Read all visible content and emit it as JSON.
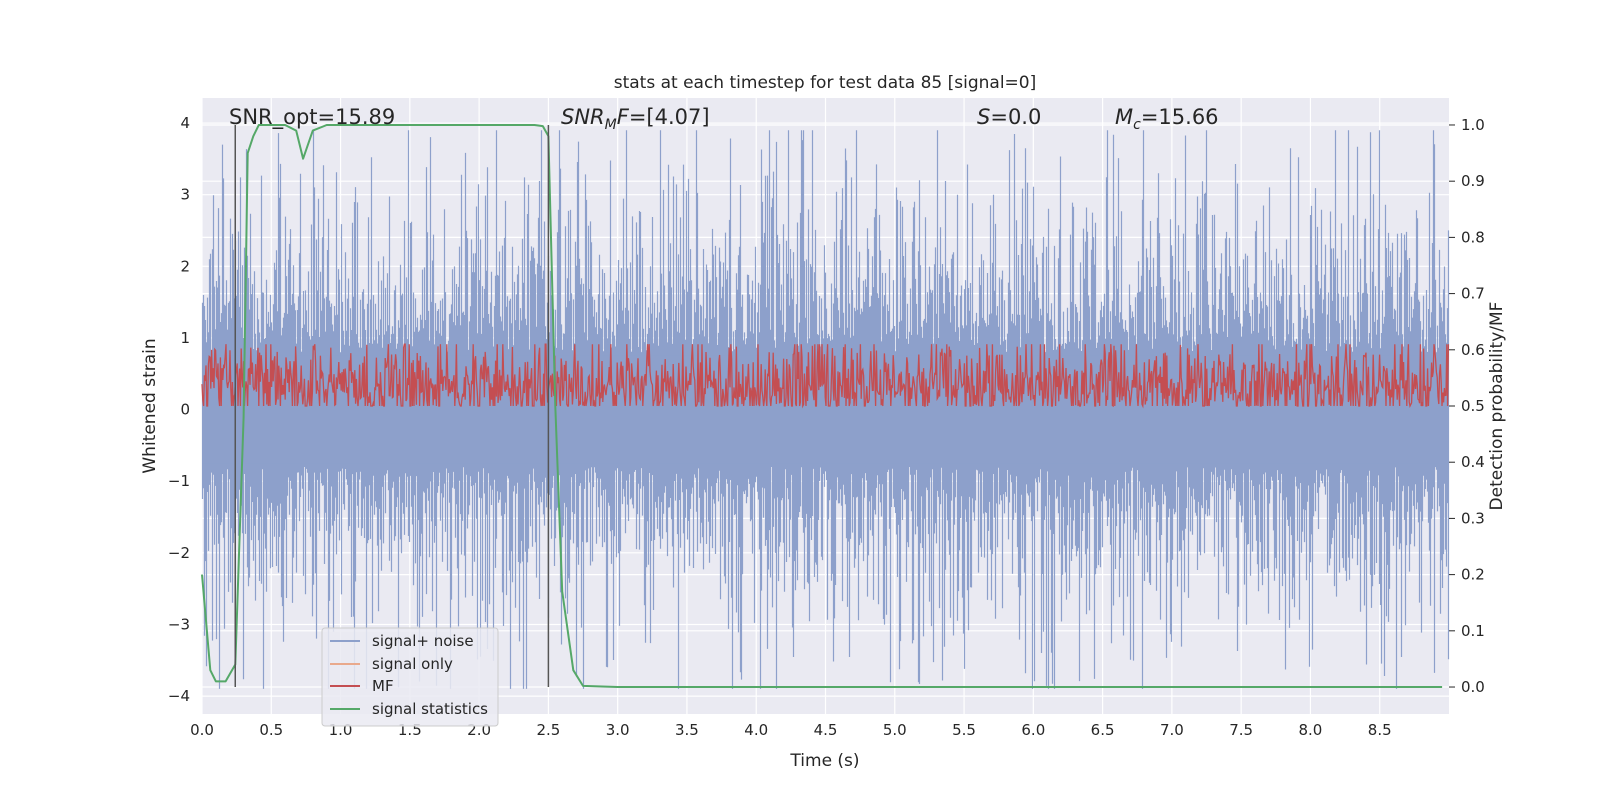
{
  "chart_data": {
    "type": "line",
    "title": "stats at each timestep for test data 85 [signal=0]",
    "xlabel": "Time (s)",
    "ylabel": "Whitened strain",
    "y2label": "Detection probability/MF",
    "xlim": [
      0.0,
      9.0
    ],
    "ylim": [
      -4.25,
      4.35
    ],
    "y2lim": [
      -0.048,
      1.048
    ],
    "xticks": [
      "0.0",
      "0.5",
      "1.0",
      "1.5",
      "2.0",
      "2.5",
      "3.0",
      "3.5",
      "4.0",
      "4.5",
      "5.0",
      "5.5",
      "6.0",
      "6.5",
      "7.0",
      "7.5",
      "8.0",
      "8.5"
    ],
    "yticks": [
      "4",
      "3",
      "2",
      "1",
      "0",
      "−1",
      "−2",
      "−3",
      "−4"
    ],
    "y2ticks": [
      "1.0",
      "0.9",
      "0.8",
      "0.7",
      "0.6",
      "0.5",
      "0.4",
      "0.3",
      "0.2",
      "0.1",
      "0.0"
    ],
    "grid": true,
    "legend_position": "lower-left",
    "annotations": {
      "snr_opt": "SNR_opt=15.89",
      "snr_mf": "=[4.07]",
      "s": "=0.0",
      "mc": "=15.66"
    },
    "vlines_x": [
      0.24,
      2.5
    ],
    "series": [
      {
        "name": "signal+ noise",
        "color": "#8da0cb",
        "description_values": "noise band roughly between -2.5 and 2.5 with spikes to about +/-3.9"
      },
      {
        "name": "signal only",
        "color": "#e9a98c",
        "values_note": "zero signal"
      },
      {
        "name": "MF",
        "color": "#c44e52",
        "range": [
          0.0,
          1.0
        ]
      },
      {
        "name": "signal statistics",
        "color": "#55a868",
        "axis": "right",
        "x": [
          0.0,
          0.06,
          0.1,
          0.17,
          0.24,
          0.3,
          0.33,
          0.37,
          0.41,
          0.5,
          0.6,
          0.68,
          0.73,
          0.8,
          0.9,
          1.0,
          1.5,
          2.0,
          2.3,
          2.4,
          2.46,
          2.5,
          2.55,
          2.6,
          2.68,
          2.75,
          3.0,
          4.0,
          5.0,
          6.0,
          7.0,
          8.0,
          8.95
        ],
        "y": [
          0.2,
          0.03,
          0.01,
          0.01,
          0.04,
          0.48,
          0.95,
          0.98,
          1.0,
          1.0,
          1.0,
          0.99,
          0.94,
          0.99,
          1.0,
          1.0,
          1.0,
          1.0,
          1.0,
          1.0,
          0.998,
          0.98,
          0.5,
          0.17,
          0.03,
          0.002,
          0.0,
          0.0,
          0.0,
          0.0,
          0.0,
          0.0,
          0.0
        ]
      }
    ]
  }
}
